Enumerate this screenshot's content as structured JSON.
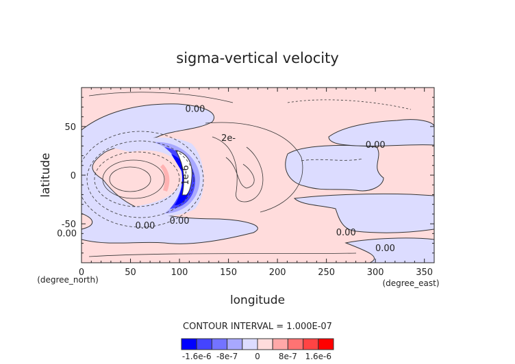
{
  "chart_data": {
    "type": "heatmap",
    "subtype": "filled contour map",
    "title": "sigma-vertical velocity",
    "xlabel": "longitude",
    "ylabel": "latitude",
    "x_units": "(degree_east)",
    "y_units": "(degree_north)",
    "xlim": [
      0,
      360
    ],
    "ylim": [
      -90,
      90
    ],
    "xticks": [
      0,
      50,
      100,
      150,
      200,
      250,
      300,
      350
    ],
    "yticks": [
      -50,
      0,
      50
    ],
    "contour_interval_text": "CONTOUR INTERVAL = 1.000E-07",
    "contour_labels": [
      "0.00",
      "0.00",
      "0.00",
      "0.00",
      "0.00",
      "0.00",
      "0.00",
      "2e-",
      "1e-6"
    ],
    "colorbar": {
      "levels": [
        -2e-06,
        -1.6e-06,
        -1.2e-06,
        -8e-07,
        -4e-07,
        0,
        4e-07,
        8e-07,
        1.2e-06,
        1.6e-06,
        2e-06
      ],
      "colors": [
        "#0000ff",
        "#4444ff",
        "#7373ff",
        "#a8a8ff",
        "#dcdcff",
        "#ffdcdc",
        "#ffa8a8",
        "#ff7373",
        "#ff4444",
        "#ff0000"
      ],
      "tick_labels": [
        {
          "value": -1.6e-06,
          "label": "-1.6e-6"
        },
        {
          "value": -8e-07,
          "label": "-8e-7"
        },
        {
          "value": 0,
          "label": "0"
        },
        {
          "value": 8e-07,
          "label": "8e-7"
        },
        {
          "value": 1.6e-06,
          "label": "1.6e-6"
        }
      ]
    }
  }
}
